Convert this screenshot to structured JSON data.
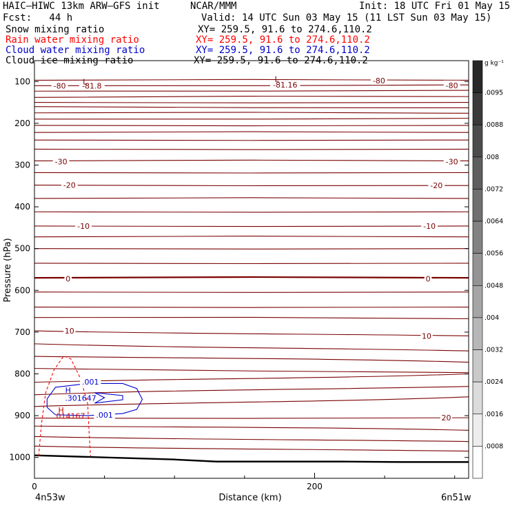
{
  "header": {
    "model": "HAIC–HIWC 13km ARW–GFS init",
    "center": "NCAR/MMM",
    "init": "Init: 18 UTC Fri 01 May 15",
    "fcst": "Fcst:   44 h",
    "valid": "Valid: 14 UTC Sun 03 May 15 (11 LST Sun 03 May 15)"
  },
  "fields": [
    {
      "name": "Snow mixing ratio",
      "xy": "XY= 259.5, 91.6 to 274.6,110.2",
      "color": "#000000"
    },
    {
      "name": "Rain water mixing ratio",
      "xy": "XY= 259.5, 91.6 to 274.6,110.2",
      "color": "#ff0000"
    },
    {
      "name": "Cloud water mixing ratio",
      "xy": "XY= 259.5, 91.6 to 274.6,110.2",
      "color": "#0000cc"
    },
    {
      "name": "Cloud ice mixing ratio",
      "xy": "XY= 259.5, 91.6 to 274.6,110.2",
      "color": "#000000"
    }
  ],
  "colorbar": {
    "unit": "g kg⁻¹",
    "labels": [
      ".0095",
      ".0088",
      ".008",
      ".0072",
      ".0064",
      ".0056",
      ".0048",
      ".004",
      ".0032",
      ".0024",
      ".0016",
      ".0008"
    ]
  },
  "chart_data": {
    "type": "contour",
    "xlabel": "Distance (km)",
    "ylabel": "Pressure (hPa)",
    "x_start_label": "4n53w",
    "x_end_label": "6n51w",
    "xlim": [
      0,
      310
    ],
    "ylim": [
      1050,
      50
    ],
    "xticks": [
      0,
      200
    ],
    "yticks": [
      100,
      200,
      300,
      400,
      500,
      600,
      700,
      800,
      900,
      1000
    ],
    "temperature_contour_labels": [
      {
        "text": "-80",
        "x": 18,
        "p": 110
      },
      {
        "text": "-81.8",
        "x": 41,
        "p": 110
      },
      {
        "text": "-81.16",
        "x": 179,
        "p": 108
      },
      {
        "text": "-80",
        "x": 246,
        "p": 98
      },
      {
        "text": "-80",
        "x": 298,
        "p": 109
      },
      {
        "text": "-30",
        "x": 19,
        "p": 292
      },
      {
        "text": "-30",
        "x": 298,
        "p": 292
      },
      {
        "text": "-20",
        "x": 25,
        "p": 348
      },
      {
        "text": "-20",
        "x": 287,
        "p": 349
      },
      {
        "text": "-10",
        "x": 35,
        "p": 446
      },
      {
        "text": "-10",
        "x": 282,
        "p": 446
      },
      {
        "text": "0",
        "x": 24,
        "p": 572
      },
      {
        "text": "0",
        "x": 281,
        "p": 572
      },
      {
        "text": "10",
        "x": 25,
        "p": 697
      },
      {
        "text": "10",
        "x": 280,
        "p": 709
      },
      {
        "text": "20",
        "x": 294,
        "p": 905
      }
    ],
    "extrema_labels": [
      {
        "text": "L",
        "x": 36,
        "p": 100
      },
      {
        "text": "L",
        "x": 173,
        "p": 94
      },
      {
        "text": "H",
        "x": 24,
        "p": 839
      },
      {
        "text": ".301647",
        "x": 33,
        "p": 858
      },
      {
        "text": "H",
        "x": 19,
        "p": 887
      },
      {
        "text": ".014167",
        "x": 25,
        "p": 901
      }
    ],
    "cloud_water_contour_labels": [
      {
        "text": ".001",
        "x": 40,
        "p": 819
      },
      {
        "text": ".001",
        "x": 50,
        "p": 898
      }
    ],
    "rain_water_contour": [
      [
        3,
        997
      ],
      [
        5,
        920
      ],
      [
        8,
        845
      ],
      [
        14,
        790
      ],
      [
        21,
        757
      ],
      [
        26,
        764
      ],
      [
        33,
        812
      ],
      [
        38,
        872
      ],
      [
        39,
        940
      ],
      [
        40,
        997
      ]
    ],
    "cloud_water_contours": [
      [
        [
          9,
          860
        ],
        [
          15,
          832
        ],
        [
          38,
          823
        ],
        [
          63,
          823
        ],
        [
          73,
          835
        ],
        [
          77,
          861
        ],
        [
          73,
          885
        ],
        [
          63,
          895
        ],
        [
          38,
          900
        ],
        [
          15,
          898
        ],
        [
          9,
          880
        ],
        [
          9,
          860
        ]
      ],
      [
        [
          43,
          845
        ],
        [
          63,
          852
        ],
        [
          63,
          862
        ],
        [
          43,
          870
        ],
        [
          50,
          857
        ],
        [
          43,
          845
        ]
      ]
    ],
    "terrain_line": [
      [
        0,
        995
      ],
      [
        50,
        1000
      ],
      [
        100,
        1005
      ],
      [
        130,
        1010
      ],
      [
        170,
        1010
      ],
      [
        220,
        1010
      ],
      [
        260,
        1011
      ],
      [
        310,
        1011
      ]
    ]
  }
}
